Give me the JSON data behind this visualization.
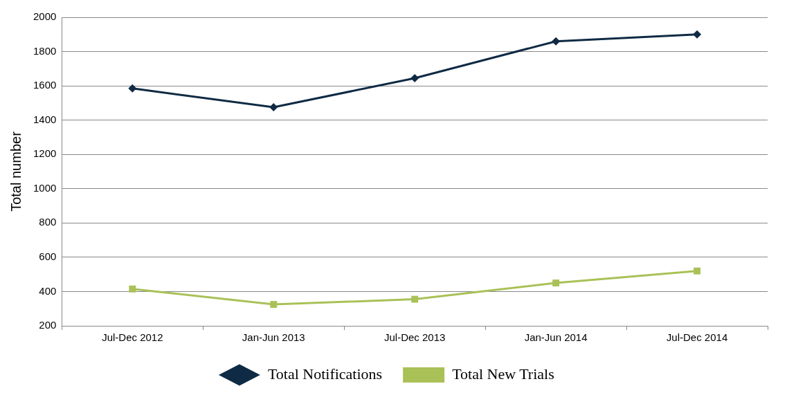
{
  "chart_data": {
    "type": "line",
    "ylabel": "Total number",
    "categories": [
      "Jul-Dec 2012",
      "Jan-Jun 2013",
      "Jul-Dec 2013",
      "Jan-Jun 2014",
      "Jul-Dec 2014"
    ],
    "series": [
      {
        "name": "Total Notifications",
        "color": "#0f2a44",
        "marker": "diamond",
        "values": [
          1585,
          1475,
          1645,
          1860,
          1900
        ]
      },
      {
        "name": "Total New Trials",
        "color": "#a9c157",
        "marker": "square",
        "values": [
          415,
          325,
          355,
          450,
          520
        ]
      }
    ],
    "ylim": [
      200,
      2000
    ],
    "yticks": [
      200,
      400,
      600,
      800,
      1000,
      1200,
      1400,
      1600,
      1800,
      2000
    ],
    "grid": "y",
    "legend": "bottom",
    "line_style": "solid"
  }
}
